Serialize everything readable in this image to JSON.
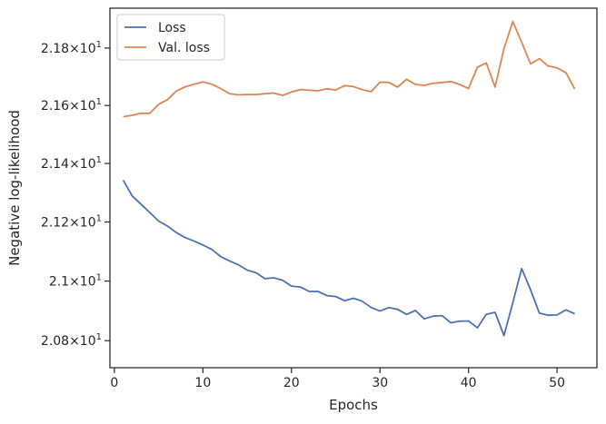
{
  "chart_data": {
    "type": "line",
    "xlabel": "Epochs",
    "ylabel": "Negative log-likelihood",
    "xlim": [
      -0.5,
      54.5
    ],
    "ylim": [
      20.71,
      21.94
    ],
    "y_scale": "log",
    "grid": false,
    "legend_position": "top-left",
    "x_ticks": [
      0,
      10,
      20,
      30,
      40,
      50
    ],
    "x_tick_labels": [
      "0",
      "10",
      "20",
      "30",
      "40",
      "50"
    ],
    "y_ticks": [
      20.8,
      21.0,
      21.2,
      21.4,
      21.6,
      21.8
    ],
    "y_tick_labels": [
      {
        "mantissa": "2.08",
        "exp": "1"
      },
      {
        "mantissa": "2.1",
        "exp": "1"
      },
      {
        "mantissa": "2.12",
        "exp": "1"
      },
      {
        "mantissa": "2.14",
        "exp": "1"
      },
      {
        "mantissa": "2.16",
        "exp": "1"
      },
      {
        "mantissa": "2.18",
        "exp": "1"
      }
    ],
    "x": [
      1,
      2,
      3,
      4,
      5,
      6,
      7,
      8,
      9,
      10,
      11,
      12,
      13,
      14,
      15,
      16,
      17,
      18,
      19,
      20,
      21,
      22,
      23,
      24,
      25,
      26,
      27,
      28,
      29,
      30,
      31,
      32,
      33,
      34,
      35,
      36,
      37,
      38,
      39,
      40,
      41,
      42,
      43,
      44,
      45,
      46,
      47,
      48,
      49,
      50,
      51,
      52
    ],
    "series": [
      {
        "name": "Loss",
        "color": "#4c72b0",
        "values": [
          21.343,
          21.289,
          21.261,
          21.232,
          21.203,
          21.186,
          21.164,
          21.147,
          21.135,
          21.122,
          21.107,
          21.083,
          21.068,
          21.055,
          21.037,
          21.028,
          21.008,
          21.011,
          21.003,
          20.983,
          20.98,
          20.965,
          20.965,
          20.951,
          20.948,
          20.934,
          20.942,
          20.932,
          20.911,
          20.899,
          20.911,
          20.905,
          20.888,
          20.901,
          20.873,
          20.882,
          20.884,
          20.86,
          20.865,
          20.866,
          20.843,
          20.888,
          20.895,
          20.817,
          20.927,
          21.042,
          20.971,
          20.892,
          20.885,
          20.886,
          20.903,
          20.89
        ]
      },
      {
        "name": "Val. loss",
        "color": "#dd8452",
        "values": [
          21.561,
          21.566,
          21.573,
          21.573,
          21.604,
          21.62,
          21.65,
          21.665,
          21.674,
          21.682,
          21.674,
          21.659,
          21.641,
          21.637,
          21.638,
          21.638,
          21.641,
          21.643,
          21.635,
          21.647,
          21.655,
          21.653,
          21.651,
          21.658,
          21.654,
          21.669,
          21.666,
          21.655,
          21.648,
          21.681,
          21.68,
          21.664,
          21.691,
          21.673,
          21.67,
          21.677,
          21.68,
          21.683,
          21.673,
          21.659,
          21.733,
          21.748,
          21.664,
          21.798,
          21.893,
          21.82,
          21.745,
          21.763,
          21.737,
          21.731,
          21.714,
          21.657
        ]
      }
    ]
  }
}
